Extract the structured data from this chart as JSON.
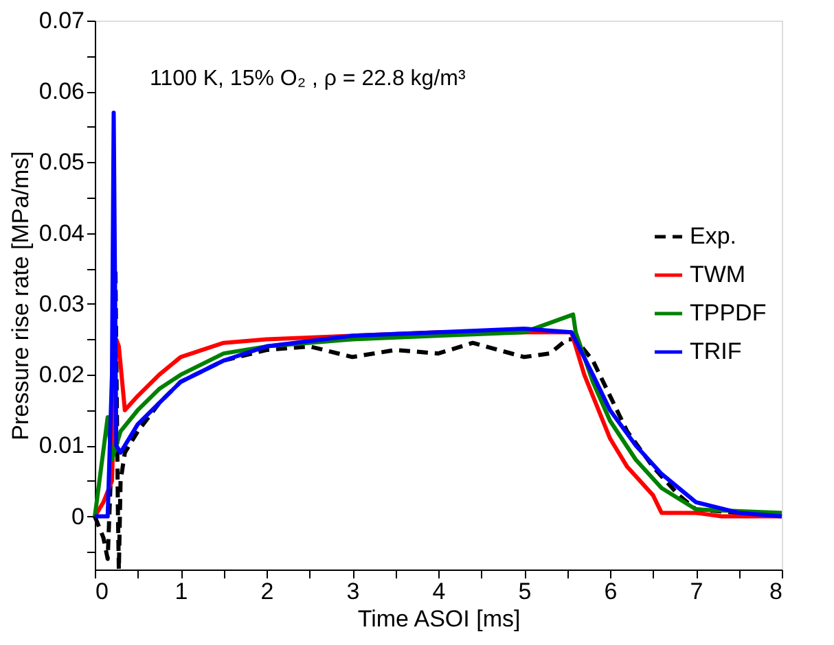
{
  "chart_data": {
    "type": "line",
    "xlabel": "Time ASOI [ms]",
    "ylabel": "Pressure rise rate [MPa/ms]",
    "annotations": [
      "1100 K, 15% O₂ , ρ = 22.8 kg/m³"
    ],
    "xlim": [
      0,
      8
    ],
    "ylim": [
      -0.0075,
      0.07
    ],
    "xticks": [
      0,
      {
        "value": 0.5,
        "label": null
      },
      1,
      {
        "value": 1.5,
        "label": null
      },
      2,
      {
        "value": 2.5,
        "label": null
      },
      3,
      {
        "value": 3.5,
        "label": null
      },
      4,
      {
        "value": 4.5,
        "label": null
      },
      5,
      {
        "value": 5.5,
        "label": null
      },
      6,
      {
        "value": 6.5,
        "label": null
      },
      7,
      {
        "value": 7.5,
        "label": null
      },
      8
    ],
    "yticks": [
      {
        "value": -0.005,
        "label": null
      },
      0,
      {
        "value": 0.005,
        "label": null
      },
      0.01,
      {
        "value": 0.015,
        "label": null
      },
      0.02,
      {
        "value": 0.025,
        "label": null
      },
      0.03,
      {
        "value": 0.035,
        "label": null
      },
      0.04,
      {
        "value": 0.045,
        "label": null
      },
      0.05,
      {
        "value": 0.055,
        "label": null
      },
      0.06,
      {
        "value": 0.065,
        "label": null
      },
      0.07
    ],
    "grid": false,
    "legend": "right",
    "marker": "none",
    "series": [
      {
        "name": "Exp.",
        "color": "#000000",
        "line_style": "dashed",
        "x": [
          0,
          0.1,
          0.15,
          0.2,
          0.24,
          0.27,
          0.28,
          0.3,
          0.35,
          0.5,
          0.75,
          1.0,
          1.5,
          2.0,
          2.5,
          3.0,
          3.5,
          4.0,
          4.4,
          5.0,
          5.3,
          5.5,
          5.6,
          5.8,
          6.0,
          6.2,
          6.5,
          6.8,
          7.0,
          7.5,
          8.0
        ],
        "values": [
          0,
          -0.003,
          -0.006,
          0.01,
          0.035,
          0.0,
          -0.0075,
          0.005,
          0.009,
          0.012,
          0.016,
          0.019,
          0.022,
          0.0235,
          0.024,
          0.0225,
          0.0235,
          0.023,
          0.0245,
          0.0225,
          0.023,
          0.025,
          0.025,
          0.022,
          0.017,
          0.012,
          0.007,
          0.003,
          0.001,
          0.0005,
          0.0005
        ]
      },
      {
        "name": "TWM",
        "color": "#ff0000",
        "line_style": "solid",
        "x": [
          0,
          0.1,
          0.2,
          0.25,
          0.28,
          0.35,
          0.5,
          0.75,
          1.0,
          1.5,
          2,
          3,
          4,
          5,
          5.55,
          5.7,
          6.0,
          6.2,
          6.5,
          6.6,
          7.0,
          7.3,
          8
        ],
        "values": [
          0,
          0.002,
          0.005,
          0.025,
          0.024,
          0.015,
          0.017,
          0.02,
          0.0225,
          0.0245,
          0.025,
          0.0255,
          0.026,
          0.026,
          0.026,
          0.02,
          0.011,
          0.007,
          0.003,
          0.0005,
          0.0005,
          0.0,
          0.0
        ]
      },
      {
        "name": "TPPDF",
        "color": "#008000",
        "line_style": "solid",
        "x": [
          0,
          0.15,
          0.2,
          0.3,
          0.5,
          0.75,
          1,
          1.5,
          2,
          3,
          4,
          5,
          5.57,
          5.6,
          5.8,
          6.0,
          6.3,
          6.6,
          7,
          8
        ],
        "values": [
          0,
          0.014,
          0.008,
          0.012,
          0.015,
          0.018,
          0.02,
          0.023,
          0.024,
          0.025,
          0.0255,
          0.026,
          0.0285,
          0.026,
          0.019,
          0.0135,
          0.008,
          0.004,
          0.001,
          0.0005
        ]
      },
      {
        "name": "TRIF",
        "color": "#0000ff",
        "line_style": "solid",
        "x": [
          0,
          0.15,
          0.2,
          0.22,
          0.25,
          0.3,
          0.5,
          0.75,
          1,
          1.5,
          2,
          3,
          4,
          5,
          5.55,
          5.8,
          6.0,
          6.3,
          6.6,
          7,
          7.5,
          8
        ],
        "values": [
          0,
          0.0,
          0.02,
          0.057,
          0.01,
          0.009,
          0.013,
          0.016,
          0.019,
          0.022,
          0.024,
          0.0255,
          0.026,
          0.0265,
          0.026,
          0.02,
          0.015,
          0.01,
          0.006,
          0.002,
          0.0005,
          0.0
        ]
      }
    ]
  }
}
